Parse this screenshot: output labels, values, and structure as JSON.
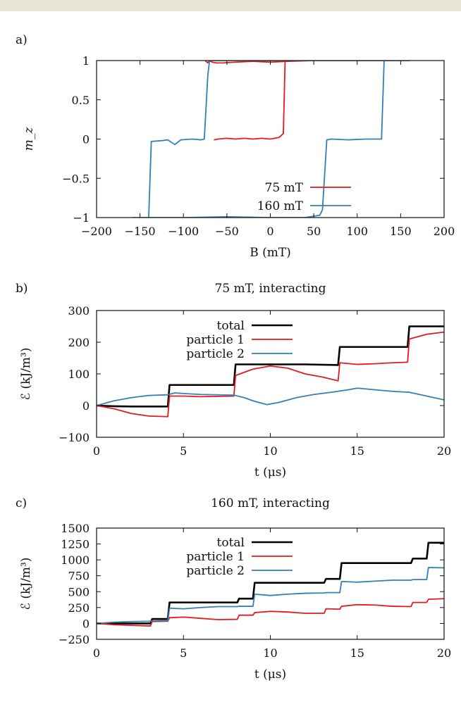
{
  "chart_data": [
    {
      "panel": "a)",
      "type": "line",
      "title": "",
      "xlabel": "B (mT)",
      "ylabel": "m_z",
      "xlim": [
        -200,
        200
      ],
      "ylim": [
        -1,
        1
      ],
      "xticks": [
        -200,
        -150,
        -100,
        -50,
        0,
        50,
        100,
        150,
        200
      ],
      "yticks": [
        -1,
        -0.5,
        0,
        0.5,
        1
      ],
      "xtick_labels": [
        "−200",
        "−150",
        "−100",
        "−50",
        "0",
        "50",
        "100",
        "150",
        "200"
      ],
      "ytick_labels": [
        "−1",
        "−0.5",
        "0",
        "0.5",
        "1"
      ],
      "legend": "bottom-right",
      "series": [
        {
          "name": "75 mT",
          "color": "#e41a1c",
          "points": [
            [
              -65,
              -0.01
            ],
            [
              -60,
              0.0
            ],
            [
              -50,
              0.01
            ],
            [
              -40,
              0.0
            ],
            [
              -30,
              0.01
            ],
            [
              -20,
              0.0
            ],
            [
              -10,
              0.01
            ],
            [
              0,
              0.0
            ],
            [
              10,
              0.02
            ],
            [
              15,
              0.07
            ],
            [
              17,
              1.0
            ],
            [
              30,
              1.0
            ],
            [
              50,
              1.0
            ],
            [
              75,
              1.0
            ],
            [
              100,
              1.0
            ],
            [
              130,
              1.0
            ],
            [
              160,
              1.0
            ],
            [
              130,
              1.0
            ],
            [
              100,
              1.0
            ],
            [
              75,
              1.0
            ],
            [
              50,
              1.0
            ],
            [
              20,
              0.99
            ],
            [
              0,
              0.98
            ],
            [
              -20,
              0.99
            ],
            [
              -40,
              0.98
            ],
            [
              -55,
              0.97
            ],
            [
              -62,
              0.97
            ],
            [
              -67,
              0.98
            ],
            [
              -70,
              1.0
            ],
            [
              -72,
              0.97
            ],
            [
              -75,
              1.0
            ]
          ]
        },
        {
          "name": "160 mT",
          "color": "#377eb8",
          "points": [
            [
              -158,
              -1.0
            ],
            [
              -145,
              -1.0
            ],
            [
              -140,
              -1.0
            ],
            [
              -137,
              -0.03
            ],
            [
              -125,
              -0.02
            ],
            [
              -118,
              -0.01
            ],
            [
              -110,
              -0.07
            ],
            [
              -103,
              -0.01
            ],
            [
              -90,
              0.0
            ],
            [
              -80,
              -0.01
            ],
            [
              -76,
              0.0
            ],
            [
              -72,
              0.8
            ],
            [
              -70,
              1.0
            ],
            [
              -60,
              1.0
            ],
            [
              -40,
              1.0
            ],
            [
              0,
              1.0
            ],
            [
              50,
              1.0
            ],
            [
              100,
              1.0
            ],
            [
              130,
              1.0
            ],
            [
              160,
              1.0
            ],
            [
              131,
              1.0
            ],
            [
              128,
              0.0
            ],
            [
              110,
              0.0
            ],
            [
              90,
              -0.01
            ],
            [
              70,
              0.0
            ],
            [
              65,
              -0.01
            ],
            [
              60,
              -0.9
            ],
            [
              57,
              -0.97
            ],
            [
              40,
              -1.0
            ],
            [
              0,
              -1.0
            ],
            [
              -50,
              -0.99
            ],
            [
              -100,
              -1.0
            ],
            [
              -140,
              -1.0
            ],
            [
              -158,
              -1.0
            ]
          ]
        }
      ]
    },
    {
      "panel": "b)",
      "type": "line",
      "title": "75 mT, interacting",
      "xlabel": "t (μs)",
      "ylabel": "ℰ (kJ/m³)",
      "xlim": [
        0,
        20
      ],
      "ylim": [
        -100,
        300
      ],
      "xticks": [
        0,
        5,
        10,
        15,
        20
      ],
      "yticks": [
        -100,
        0,
        100,
        200,
        300
      ],
      "xtick_labels": [
        "0",
        "5",
        "10",
        "15",
        "20"
      ],
      "ytick_labels": [
        "−100",
        "0",
        "100",
        "200",
        "300"
      ],
      "legend": "top-left",
      "series": [
        {
          "name": "total",
          "color": "#000000",
          "points": [
            [
              0,
              0
            ],
            [
              1,
              -2
            ],
            [
              2,
              -3
            ],
            [
              3,
              -3
            ],
            [
              4.1,
              -3
            ],
            [
              4.2,
              65
            ],
            [
              6,
              65
            ],
            [
              7.9,
              65
            ],
            [
              8.0,
              130
            ],
            [
              10,
              130
            ],
            [
              12,
              130
            ],
            [
              13.9,
              128
            ],
            [
              14.0,
              185
            ],
            [
              16,
              185
            ],
            [
              17.9,
              185
            ],
            [
              18.0,
              250
            ],
            [
              20,
              250
            ]
          ]
        },
        {
          "name": "particle 1",
          "color": "#e41a1c",
          "points": [
            [
              0,
              0
            ],
            [
              1,
              -10
            ],
            [
              2,
              -25
            ],
            [
              3,
              -33
            ],
            [
              4.1,
              -35
            ],
            [
              4.2,
              30
            ],
            [
              5,
              30
            ],
            [
              6,
              28
            ],
            [
              7.9,
              30
            ],
            [
              8.0,
              95
            ],
            [
              9,
              115
            ],
            [
              10,
              125
            ],
            [
              11,
              118
            ],
            [
              12,
              100
            ],
            [
              13,
              90
            ],
            [
              13.9,
              78
            ],
            [
              14.0,
              135
            ],
            [
              15,
              130
            ],
            [
              16,
              132
            ],
            [
              17,
              135
            ],
            [
              17.9,
              137
            ],
            [
              18.0,
              210
            ],
            [
              19,
              225
            ],
            [
              20,
              232
            ]
          ]
        },
        {
          "name": "particle 2",
          "color": "#377eb8",
          "points": [
            [
              0,
              0
            ],
            [
              1,
              15
            ],
            [
              2,
              25
            ],
            [
              3,
              32
            ],
            [
              4.1,
              34
            ],
            [
              4.5,
              40
            ],
            [
              5,
              38
            ],
            [
              6,
              35
            ],
            [
              7.9,
              33
            ],
            [
              8.5,
              25
            ],
            [
              9,
              15
            ],
            [
              9.8,
              3
            ],
            [
              10.5,
              10
            ],
            [
              11.5,
              25
            ],
            [
              12.5,
              35
            ],
            [
              13.5,
              42
            ],
            [
              14.5,
              50
            ],
            [
              15,
              55
            ],
            [
              16,
              50
            ],
            [
              17,
              45
            ],
            [
              18,
              42
            ],
            [
              19,
              30
            ],
            [
              20,
              18
            ]
          ]
        }
      ]
    },
    {
      "panel": "c)",
      "type": "line",
      "title": "160 mT, interacting",
      "xlabel": "t (μs)",
      "ylabel": "ℰ (kJ/m³)",
      "xlim": [
        0,
        20
      ],
      "ylim": [
        -250,
        1500
      ],
      "xticks": [
        0,
        5,
        10,
        15,
        20
      ],
      "yticks": [
        -250,
        0,
        250,
        500,
        750,
        1000,
        1250,
        1500
      ],
      "xtick_labels": [
        "0",
        "5",
        "10",
        "15",
        "20"
      ],
      "ytick_labels": [
        "−250",
        "0",
        "250",
        "500",
        "750",
        "1000",
        "1250",
        "1500"
      ],
      "legend": "top-left",
      "series": [
        {
          "name": "total",
          "color": "#000000",
          "points": [
            [
              0,
              0
            ],
            [
              1,
              0
            ],
            [
              2,
              0
            ],
            [
              3.1,
              0
            ],
            [
              3.2,
              70
            ],
            [
              4.1,
              70
            ],
            [
              4.2,
              330
            ],
            [
              6,
              330
            ],
            [
              8.1,
              330
            ],
            [
              8.2,
              390
            ],
            [
              9.0,
              390
            ],
            [
              9.1,
              640
            ],
            [
              11,
              640
            ],
            [
              13.1,
              640
            ],
            [
              13.2,
              700
            ],
            [
              14.0,
              700
            ],
            [
              14.1,
              950
            ],
            [
              16,
              950
            ],
            [
              18.1,
              950
            ],
            [
              18.2,
              1020
            ],
            [
              19.0,
              1020
            ],
            [
              19.1,
              1270
            ],
            [
              20,
              1270
            ]
          ]
        },
        {
          "name": "particle 1",
          "color": "#e41a1c",
          "points": [
            [
              0,
              0
            ],
            [
              1,
              -20
            ],
            [
              2,
              -30
            ],
            [
              3.1,
              -40
            ],
            [
              3.2,
              30
            ],
            [
              4.1,
              35
            ],
            [
              4.2,
              90
            ],
            [
              5,
              100
            ],
            [
              6,
              80
            ],
            [
              7,
              60
            ],
            [
              8.1,
              65
            ],
            [
              8.2,
              130
            ],
            [
              9.0,
              130
            ],
            [
              9.1,
              170
            ],
            [
              10,
              190
            ],
            [
              11,
              180
            ],
            [
              12,
              160
            ],
            [
              13.1,
              160
            ],
            [
              13.2,
              230
            ],
            [
              14.0,
              225
            ],
            [
              14.1,
              270
            ],
            [
              15,
              295
            ],
            [
              16,
              290
            ],
            [
              17,
              270
            ],
            [
              18.1,
              265
            ],
            [
              18.2,
              330
            ],
            [
              19.0,
              330
            ],
            [
              19.1,
              380
            ],
            [
              20,
              390
            ]
          ]
        },
        {
          "name": "particle 2",
          "color": "#377eb8",
          "points": [
            [
              0,
              0
            ],
            [
              1,
              20
            ],
            [
              2,
              30
            ],
            [
              3.1,
              35
            ],
            [
              3.2,
              40
            ],
            [
              4.1,
              45
            ],
            [
              4.2,
              240
            ],
            [
              5,
              230
            ],
            [
              6,
              250
            ],
            [
              7,
              265
            ],
            [
              8.1,
              265
            ],
            [
              8.2,
              270
            ],
            [
              9.0,
              270
            ],
            [
              9.1,
              460
            ],
            [
              10,
              440
            ],
            [
              11,
              460
            ],
            [
              12,
              475
            ],
            [
              13.1,
              480
            ],
            [
              13.2,
              485
            ],
            [
              14.0,
              485
            ],
            [
              14.1,
              660
            ],
            [
              15,
              650
            ],
            [
              16,
              665
            ],
            [
              17,
              680
            ],
            [
              18.1,
              680
            ],
            [
              18.2,
              690
            ],
            [
              19.0,
              690
            ],
            [
              19.1,
              880
            ],
            [
              20,
              875
            ]
          ]
        }
      ]
    }
  ]
}
